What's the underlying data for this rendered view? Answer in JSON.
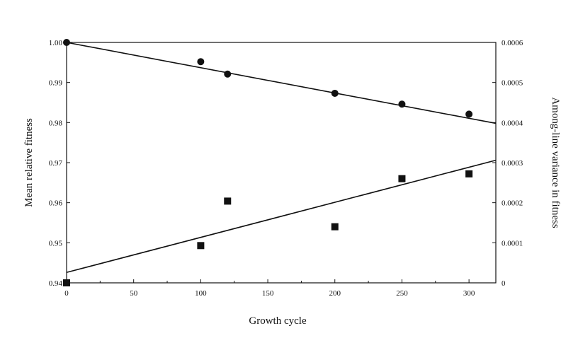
{
  "chart_data": {
    "type": "scatter",
    "title": "",
    "xlabel": "Growth cycle",
    "ylabel_left": "Mean relative fitness",
    "ylabel_right": "Among-line variance in fitness",
    "xlim": [
      0,
      320
    ],
    "ylim_left": [
      0.94,
      1.0
    ],
    "ylim_right": [
      0,
      0.0006
    ],
    "x_ticks": [
      "0",
      "50",
      "100",
      "150",
      "200",
      "250",
      "300"
    ],
    "y_left_ticks": [
      "0.94",
      "0.95",
      "0.96",
      "0.97",
      "0.98",
      "0.99",
      "1.00"
    ],
    "y_right_ticks": [
      "0",
      "0.0001",
      "0.0002",
      "0.0003",
      "0.0004",
      "0.0005",
      "0.0006"
    ],
    "grid": false,
    "series": [
      {
        "marker": "circle",
        "axis": "left",
        "points": [
          [
            0,
            1.0
          ],
          [
            100,
            0.9952
          ],
          [
            120,
            0.9921
          ],
          [
            200,
            0.9873
          ],
          [
            250,
            0.9846
          ],
          [
            300,
            0.9821
          ]
        ],
        "fit_line": [
          [
            0,
            1.0
          ],
          [
            320,
            0.9798
          ]
        ]
      },
      {
        "marker": "square",
        "axis": "right",
        "points": [
          [
            0,
            0.0
          ],
          [
            100,
            9.3e-05
          ],
          [
            120,
            0.000204
          ],
          [
            200,
            0.00014
          ],
          [
            250,
            0.00026
          ],
          [
            300,
            0.000272
          ]
        ],
        "fit_line": [
          [
            0,
            2.6e-05
          ],
          [
            320,
            0.000306
          ]
        ]
      }
    ],
    "colors": {
      "ink": "#111111",
      "background": "#ffffff"
    }
  }
}
